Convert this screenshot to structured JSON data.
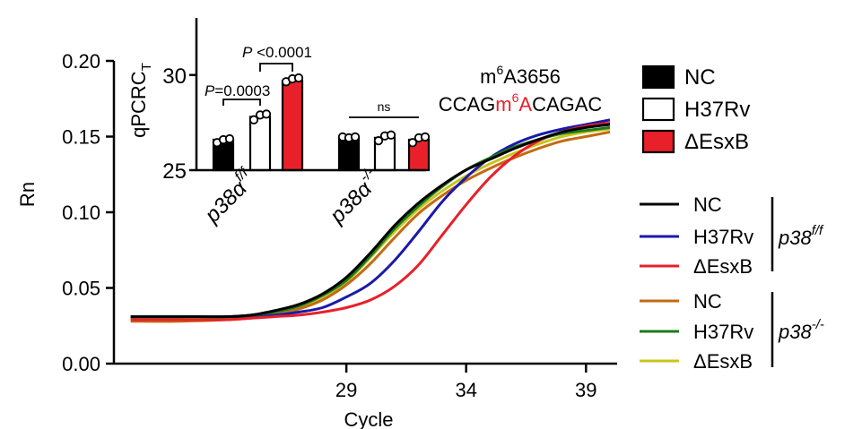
{
  "chart_data": [
    {
      "type": "line",
      "xlabel": "Cycle",
      "ylabel": "Rn",
      "xlim": [
        19.3,
        40.3
      ],
      "ylim": [
        0,
        0.2
      ],
      "xticks": [
        29,
        34,
        39
      ],
      "yticks": [
        {
          "value": 0.0,
          "label": "0.00"
        },
        {
          "value": 0.05,
          "label": "0.05"
        },
        {
          "value": 0.1,
          "label": "0.10"
        },
        {
          "value": 0.15,
          "label": "0.15"
        },
        {
          "value": 0.2,
          "label": "0.20"
        }
      ],
      "x": [
        20,
        22,
        24,
        25,
        26,
        27,
        28,
        29,
        30,
        31,
        32,
        33,
        34,
        35,
        36,
        37,
        38,
        39,
        40
      ],
      "series": [
        {
          "name": "NC",
          "group": "p38f/f",
          "color": "#000000",
          "values": [
            0.031,
            0.031,
            0.031,
            0.032,
            0.035,
            0.039,
            0.046,
            0.057,
            0.073,
            0.091,
            0.106,
            0.118,
            0.128,
            0.135,
            0.142,
            0.148,
            0.153,
            0.156,
            0.158
          ]
        },
        {
          "name": "H37Rv",
          "group": "p38f/f",
          "color": "#1a1aa8",
          "values": [
            0.031,
            0.031,
            0.031,
            0.031,
            0.032,
            0.034,
            0.037,
            0.044,
            0.053,
            0.068,
            0.087,
            0.107,
            0.123,
            0.136,
            0.145,
            0.151,
            0.155,
            0.158,
            0.161
          ]
        },
        {
          "name": "ΔEsxB",
          "group": "p38f/f",
          "color": "#e8202a",
          "values": [
            0.029,
            0.029,
            0.029,
            0.03,
            0.031,
            0.032,
            0.034,
            0.037,
            0.042,
            0.051,
            0.065,
            0.085,
            0.105,
            0.123,
            0.137,
            0.147,
            0.153,
            0.157,
            0.159
          ]
        },
        {
          "name": "NC",
          "group": "p38-/-",
          "color": "#c46a14",
          "values": [
            0.028,
            0.028,
            0.029,
            0.03,
            0.032,
            0.036,
            0.042,
            0.052,
            0.066,
            0.083,
            0.099,
            0.111,
            0.121,
            0.129,
            0.136,
            0.142,
            0.147,
            0.15,
            0.153
          ]
        },
        {
          "name": "H37Rv",
          "group": "p38-/-",
          "color": "#1d7a1d",
          "values": [
            0.031,
            0.031,
            0.031,
            0.032,
            0.034,
            0.038,
            0.045,
            0.055,
            0.071,
            0.089,
            0.104,
            0.117,
            0.128,
            0.136,
            0.143,
            0.148,
            0.152,
            0.154,
            0.156
          ]
        },
        {
          "name": "ΔEsxB",
          "group": "p38-/-",
          "color": "#c8c41e",
          "values": [
            0.03,
            0.03,
            0.03,
            0.031,
            0.033,
            0.037,
            0.044,
            0.054,
            0.07,
            0.087,
            0.102,
            0.114,
            0.124,
            0.132,
            0.139,
            0.145,
            0.15,
            0.153,
            0.155
          ]
        }
      ],
      "legend": [
        {
          "group_label": "p38",
          "group_sup": "f/f",
          "items": [
            {
              "label": "NC",
              "color": "#000000"
            },
            {
              "label": "H37Rv",
              "color": "#1a1aa8"
            },
            {
              "label": "ΔEsxB",
              "color": "#e8202a"
            }
          ]
        },
        {
          "group_label": "p38",
          "group_sup": "-/-",
          "items": [
            {
              "label": "NC",
              "color": "#c46a14"
            },
            {
              "label": "H37Rv",
              "color": "#1d7a1d"
            },
            {
              "label": "ΔEsxB",
              "color": "#c8c41e"
            }
          ]
        }
      ],
      "annotation": {
        "site_prefix": "m",
        "site_sup": "6",
        "site_suffix": "A3656",
        "seq_pre": "CCAG",
        "seq_mod_m": "m",
        "seq_mod_sup": "6",
        "seq_mod_a": "A",
        "seq_post": "CAGAC",
        "mod_color": "#e8202a"
      }
    },
    {
      "type": "bar",
      "ylabel_main": "qPCRC",
      "ylabel_sub": "T",
      "ylim": [
        25,
        33
      ],
      "yticks": [
        25,
        30
      ],
      "groups": [
        {
          "label": "p38α",
          "sup": "f/f",
          "bars": [
            {
              "name": "NC",
              "value": 26.6,
              "points": [
                26.4,
                26.6,
                26.6
              ]
            },
            {
              "name": "H37Rv",
              "value": 27.8,
              "points": [
                27.6,
                27.9,
                27.9
              ]
            },
            {
              "name": "ΔEsxB",
              "value": 29.7,
              "points": [
                29.6,
                29.8,
                29.8
              ]
            }
          ]
        },
        {
          "label": "p38α",
          "sup": "-/-",
          "bars": [
            {
              "name": "NC",
              "value": 26.7,
              "points": [
                26.7,
                26.7,
                26.7
              ]
            },
            {
              "name": "H37Rv",
              "value": 26.7,
              "points": [
                26.5,
                26.8,
                26.8
              ]
            },
            {
              "name": "ΔEsxB",
              "value": 26.6,
              "points": [
                26.4,
                26.7,
                26.7
              ]
            }
          ]
        }
      ],
      "legend": [
        {
          "label": "NC",
          "fill": "#000000"
        },
        {
          "label": "H37Rv",
          "fill": "#ffffff"
        },
        {
          "label": "ΔEsxB",
          "fill": "#e8202a"
        }
      ],
      "significance": [
        {
          "p_label": "P",
          "text": "=0.0003"
        },
        {
          "p_label": "P",
          "text": " <0.0001"
        },
        {
          "text": "ns"
        }
      ]
    }
  ]
}
